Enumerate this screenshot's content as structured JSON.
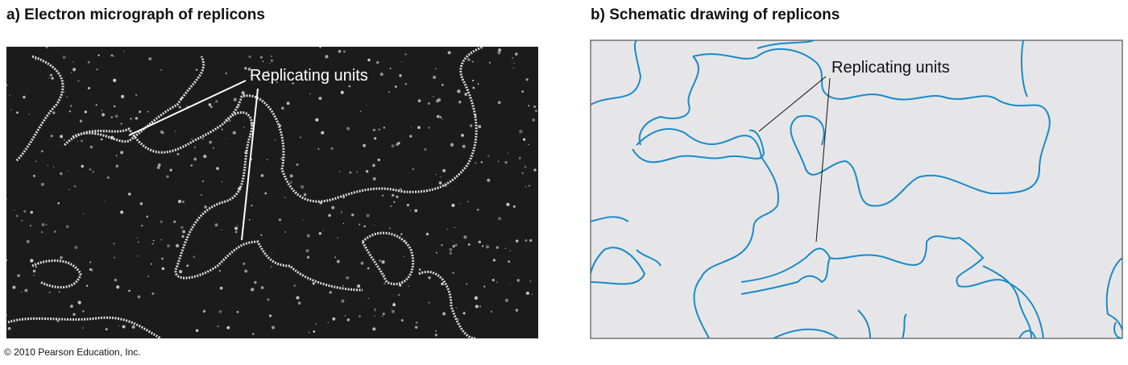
{
  "panel_a": {
    "title": "a) Electron micrograph of replicons",
    "label": "Replicating units"
  },
  "panel_b": {
    "title": "b) Schematic drawing of replicons",
    "label": "Replicating units"
  },
  "footer": {
    "credit": "© 2010 Pearson Education, Inc."
  }
}
